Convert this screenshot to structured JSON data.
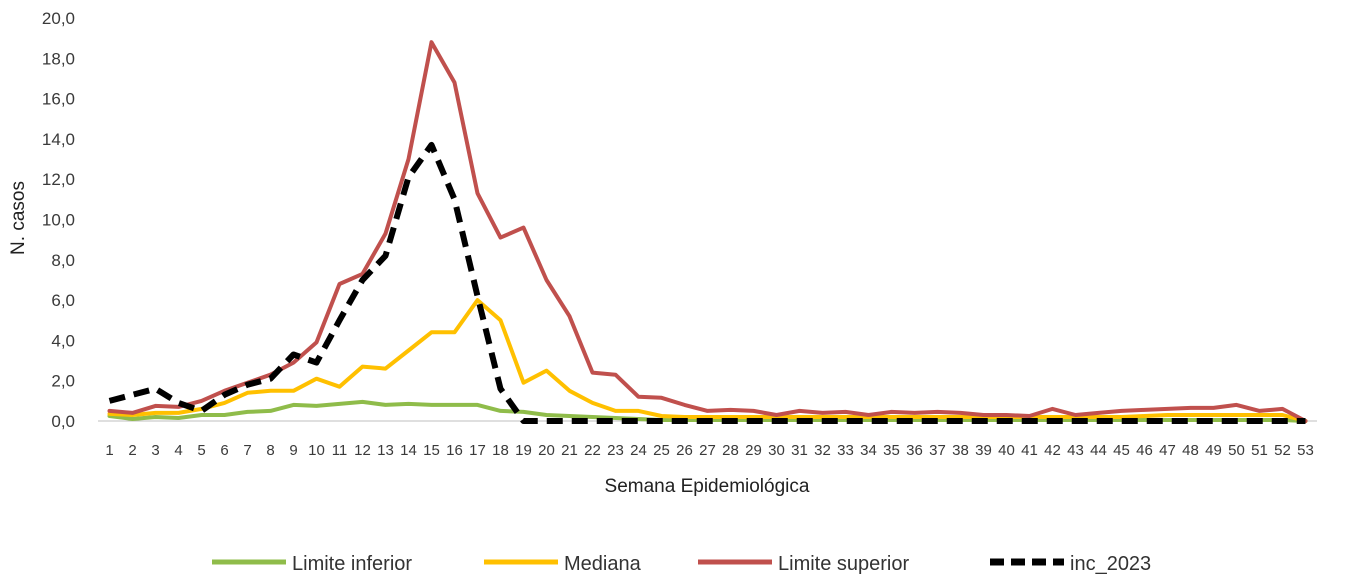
{
  "chart_data": {
    "type": "line",
    "title": "",
    "xlabel": "Semana Epidemiológica",
    "ylabel": "N. casos",
    "ylim": [
      0,
      20
    ],
    "yticks": [
      "0,0",
      "2,0",
      "4,0",
      "6,0",
      "8,0",
      "10,0",
      "12,0",
      "14,0",
      "16,0",
      "18,0",
      "20,0"
    ],
    "categories": [
      "1",
      "2",
      "3",
      "4",
      "5",
      "6",
      "7",
      "8",
      "9",
      "10",
      "11",
      "12",
      "13",
      "14",
      "15",
      "16",
      "17",
      "18",
      "19",
      "20",
      "21",
      "22",
      "23",
      "24",
      "25",
      "26",
      "27",
      "28",
      "29",
      "30",
      "31",
      "32",
      "33",
      "34",
      "35",
      "36",
      "37",
      "38",
      "39",
      "40",
      "41",
      "42",
      "43",
      "44",
      "45",
      "46",
      "47",
      "48",
      "49",
      "50",
      "51",
      "52",
      "53"
    ],
    "legend_position": "bottom",
    "grid": false,
    "series": [
      {
        "name": "Limite inferior",
        "color": "#8fbc4a",
        "style": "solid",
        "values": [
          0.25,
          0.1,
          0.2,
          0.15,
          0.3,
          0.3,
          0.45,
          0.5,
          0.8,
          0.75,
          0.85,
          0.95,
          0.8,
          0.85,
          0.8,
          0.8,
          0.8,
          0.5,
          0.45,
          0.3,
          0.25,
          0.2,
          0.15,
          0.1,
          0.05,
          0.05,
          0.05,
          0.05,
          0.05,
          0.05,
          0.05,
          0.05,
          0.05,
          0.05,
          0.05,
          0.05,
          0.05,
          0.05,
          0.05,
          0.05,
          0.05,
          0.05,
          0.05,
          0.05,
          0.05,
          0.05,
          0.05,
          0.05,
          0.05,
          0.05,
          0.05,
          0.05,
          0.0
        ]
      },
      {
        "name": "Mediana",
        "color": "#ffc000",
        "style": "solid",
        "values": [
          0.35,
          0.3,
          0.4,
          0.4,
          0.6,
          0.9,
          1.4,
          1.5,
          1.5,
          2.1,
          1.7,
          2.7,
          2.6,
          3.5,
          4.4,
          4.4,
          6.0,
          5.0,
          1.9,
          2.5,
          1.5,
          0.9,
          0.5,
          0.5,
          0.25,
          0.2,
          0.2,
          0.2,
          0.2,
          0.2,
          0.2,
          0.2,
          0.2,
          0.2,
          0.2,
          0.2,
          0.2,
          0.2,
          0.2,
          0.2,
          0.2,
          0.2,
          0.2,
          0.2,
          0.2,
          0.25,
          0.3,
          0.3,
          0.3,
          0.3,
          0.3,
          0.3,
          0.0
        ]
      },
      {
        "name": "Limite superior",
        "color": "#c0504d",
        "style": "solid",
        "values": [
          0.5,
          0.4,
          0.75,
          0.7,
          1.0,
          1.5,
          1.9,
          2.3,
          2.9,
          3.9,
          6.8,
          7.3,
          9.3,
          13.0,
          18.8,
          16.8,
          11.3,
          9.1,
          9.6,
          7.0,
          5.2,
          2.4,
          2.3,
          1.2,
          1.15,
          0.8,
          0.5,
          0.55,
          0.5,
          0.3,
          0.5,
          0.4,
          0.45,
          0.3,
          0.45,
          0.4,
          0.45,
          0.4,
          0.3,
          0.3,
          0.25,
          0.6,
          0.3,
          0.4,
          0.5,
          0.55,
          0.6,
          0.65,
          0.65,
          0.8,
          0.5,
          0.6,
          0.0
        ]
      },
      {
        "name": "inc_2023",
        "color": "#000000",
        "style": "dashed",
        "values": [
          1.0,
          1.3,
          1.6,
          0.9,
          0.5,
          1.3,
          1.8,
          2.1,
          3.3,
          2.9,
          5.0,
          7.0,
          8.2,
          12.1,
          13.7,
          11.0,
          6.2,
          1.6,
          0.0,
          0.0,
          0.0,
          0.0,
          0.0,
          0.0,
          0.0,
          0.0,
          0.0,
          0.0,
          0.0,
          0.0,
          0.0,
          0.0,
          0.0,
          0.0,
          0.0,
          0.0,
          0.0,
          0.0,
          0.0,
          0.0,
          0.0,
          0.0,
          0.0,
          0.0,
          0.0,
          0.0,
          0.0,
          0.0,
          0.0,
          0.0,
          0.0,
          0.0,
          0.0
        ]
      }
    ]
  }
}
